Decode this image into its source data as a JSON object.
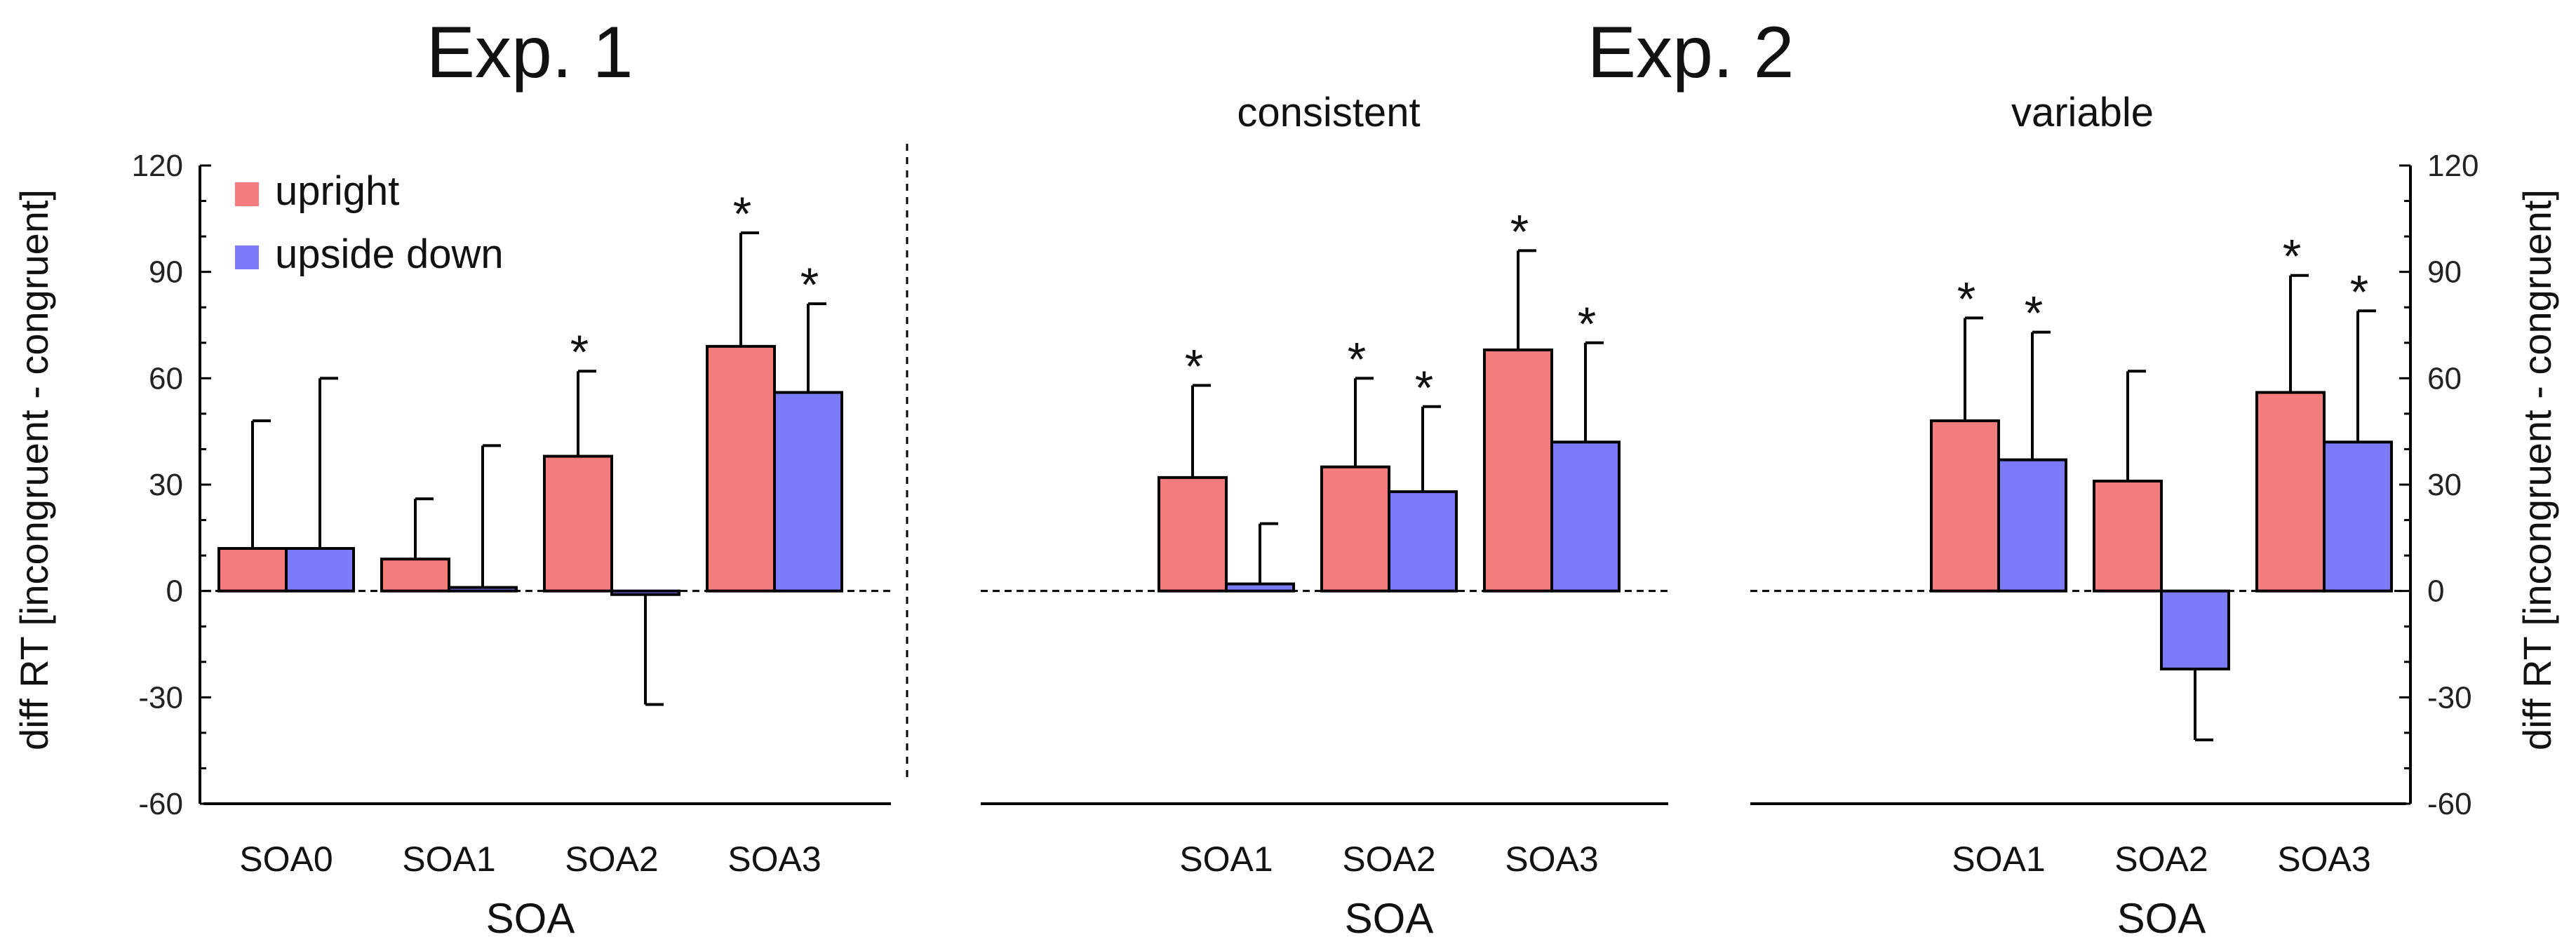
{
  "figure": {
    "left_title": "Exp. 1",
    "right_title": "Exp. 2",
    "ylabel_left": "diff RT [incongruent - congruent]",
    "ylabel_right": "diff RT [incongruent - congruent]"
  },
  "colors": {
    "upright": "#f47c7c",
    "upside_down": "#7b7bf7"
  },
  "chart_data": [
    {
      "type": "bar",
      "panel": "exp1",
      "title": "Exp. 1",
      "subtitle": "",
      "xlabel": "SOA",
      "ylabel": "diff RT [incongruent - congruent]",
      "ylim": [
        -60,
        120
      ],
      "yticks": [
        -60,
        -30,
        0,
        30,
        60,
        90,
        120
      ],
      "categories": [
        "SOA0",
        "SOA1",
        "SOA2",
        "SOA3"
      ],
      "legend": {
        "position": "top-left",
        "entries": [
          "upright",
          "upside down"
        ]
      },
      "series": [
        {
          "name": "upright",
          "values": [
            12,
            9,
            38,
            69
          ],
          "error": [
            36,
            17,
            24,
            32
          ],
          "significant": [
            false,
            false,
            true,
            true
          ]
        },
        {
          "name": "upside down",
          "values": [
            12,
            1,
            -1,
            56
          ],
          "error": [
            48,
            40,
            31,
            25
          ],
          "significant": [
            false,
            false,
            false,
            true
          ]
        }
      ]
    },
    {
      "type": "bar",
      "panel": "exp2-consistent",
      "title": "Exp. 2",
      "subtitle": "consistent",
      "xlabel": "SOA",
      "ylabel": "",
      "ylim": [
        -60,
        120
      ],
      "categories": [
        "",
        "SOA1",
        "SOA2",
        "SOA3"
      ],
      "series": [
        {
          "name": "upright",
          "values": [
            null,
            32,
            35,
            68
          ],
          "error": [
            null,
            26,
            25,
            28
          ],
          "significant": [
            false,
            true,
            true,
            true
          ]
        },
        {
          "name": "upside down",
          "values": [
            null,
            2,
            28,
            42
          ],
          "error": [
            null,
            17,
            24,
            28
          ],
          "significant": [
            false,
            false,
            true,
            true
          ]
        }
      ]
    },
    {
      "type": "bar",
      "panel": "exp2-variable",
      "title": "Exp. 2",
      "subtitle": "variable",
      "xlabel": "SOA",
      "ylabel": "diff RT [incongruent - congruent]",
      "ylim": [
        -60,
        120
      ],
      "yticks": [
        -60,
        -30,
        0,
        30,
        60,
        90,
        120
      ],
      "categories": [
        "",
        "SOA1",
        "SOA2",
        "SOA3"
      ],
      "series": [
        {
          "name": "upright",
          "values": [
            null,
            48,
            31,
            56
          ],
          "error": [
            null,
            29,
            31,
            33
          ],
          "significant": [
            false,
            true,
            false,
            true
          ]
        },
        {
          "name": "upside down",
          "values": [
            null,
            37,
            -22,
            42
          ],
          "error": [
            null,
            36,
            20,
            37
          ],
          "significant": [
            false,
            true,
            false,
            true
          ]
        }
      ]
    }
  ]
}
